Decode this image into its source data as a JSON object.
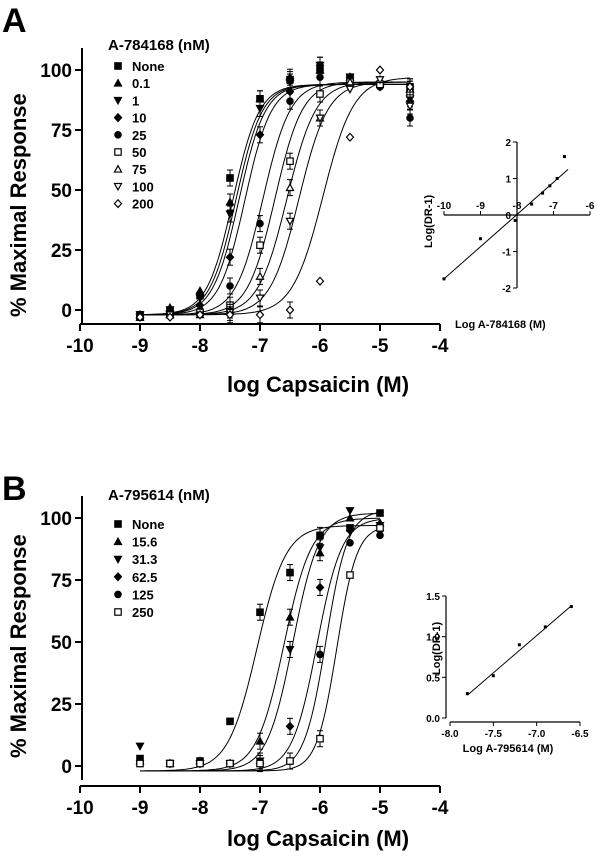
{
  "panels": [
    {
      "letter": "A",
      "legend_title": "A-784168 (nM)",
      "ylabel": "% Maximal Response",
      "xlabel": "log Capsaicin (M)",
      "xticks": [
        "-10",
        "-9",
        "-8",
        "-7",
        "-6",
        "-5",
        "-4"
      ],
      "yticks": [
        "0",
        "25",
        "50",
        "75",
        "100"
      ],
      "inset": {
        "ylabel": "Log(DR-1)",
        "xlabel": "Log A-784168 (M)",
        "xticks": [
          "-10",
          "-9",
          "-8",
          "-7",
          "-6"
        ],
        "yticks": [
          "2",
          "1",
          "0",
          "-1",
          "-2"
        ]
      }
    },
    {
      "letter": "B",
      "legend_title": "A-795614 (nM)",
      "ylabel": "% Maximal Response",
      "xlabel": "log Capsaicin (M)",
      "xticks": [
        "-10",
        "-9",
        "-8",
        "-7",
        "-6",
        "-5",
        "-4"
      ],
      "yticks": [
        "0",
        "25",
        "50",
        "75",
        "100"
      ],
      "inset": {
        "ylabel": "Log(DR-1)",
        "xlabel": "Log A-795614 (M)",
        "xticks": [
          "-8.0",
          "-7.5",
          "-7.0",
          "-6.5"
        ],
        "yticks": [
          "0.0",
          "0.5",
          "1.0",
          "1.5"
        ]
      }
    }
  ],
  "chart_data": [
    {
      "type": "scatter",
      "panel": "A",
      "title": "",
      "xlabel": "log Capsaicin (M)",
      "ylabel": "% Maximal Response",
      "xlim": [
        -10,
        -4
      ],
      "ylim": [
        -8,
        108
      ],
      "fit": "sigmoidal dose-response curves",
      "legend_title": "A-784168 (nM)",
      "series": [
        {
          "name": "None",
          "marker": "square-filled",
          "ec50": -7.45,
          "top": 94,
          "hill": 2.0,
          "x": [
            -9,
            -8.5,
            -8,
            -7.5,
            -7,
            -6.5,
            -6,
            -5.5,
            -5,
            -4.5
          ],
          "y": [
            -2,
            0,
            6,
            55,
            88,
            96,
            100,
            97,
            94,
            93
          ]
        },
        {
          "name": "0.1",
          "marker": "triangle-up-filled",
          "ec50": -7.4,
          "top": 94,
          "hill": 2.0,
          "x": [
            -9,
            -8.5,
            -8,
            -7.5,
            -7,
            -6.5,
            -6,
            -5.5,
            -5,
            -4.5
          ],
          "y": [
            -2,
            1,
            8,
            45,
            88,
            97,
            100,
            97,
            95,
            92
          ]
        },
        {
          "name": "1",
          "marker": "triangle-down-filled",
          "ec50": -7.35,
          "top": 94,
          "hill": 2.0,
          "x": [
            -9,
            -8.5,
            -8,
            -7.5,
            -7,
            -6.5,
            -6,
            -5.5,
            -5,
            -4.5
          ],
          "y": [
            -2,
            0,
            5,
            40,
            84,
            95,
            102,
            97,
            94,
            88
          ]
        },
        {
          "name": "10",
          "marker": "diamond-filled",
          "ec50": -7.25,
          "top": 94,
          "hill": 2.0,
          "x": [
            -9,
            -8.5,
            -8,
            -7.5,
            -7,
            -6.5,
            -6,
            -5.5,
            -5,
            -4.5
          ],
          "y": [
            -2,
            -1,
            2,
            22,
            73,
            91,
            102,
            97,
            93,
            87
          ]
        },
        {
          "name": "25",
          "marker": "circle-filled",
          "ec50": -6.95,
          "top": 95,
          "hill": 1.9,
          "x": [
            -9,
            -8.5,
            -8,
            -7.5,
            -7,
            -6.5,
            -6,
            -5.5,
            -5,
            -4.5
          ],
          "y": [
            -3,
            -2,
            0,
            10,
            36,
            87,
            97,
            96,
            93,
            80
          ]
        },
        {
          "name": "50",
          "marker": "square-open",
          "ec50": -6.75,
          "top": 95,
          "hill": 1.9,
          "x": [
            -9,
            -8.5,
            -8,
            -7.5,
            -7,
            -6.5,
            -6,
            -5.5,
            -5,
            -4.5
          ],
          "y": [
            -3,
            -2,
            -1,
            2,
            27,
            62,
            90,
            95,
            94,
            90
          ]
        },
        {
          "name": "75",
          "marker": "triangle-up-open",
          "ec50": -6.55,
          "top": 95,
          "hill": 1.8,
          "x": [
            -9,
            -8.5,
            -8,
            -7.5,
            -7,
            -6.5,
            -6,
            -5.5,
            -5,
            -4.5
          ],
          "y": [
            -3,
            -2,
            -2,
            0,
            14,
            51,
            80,
            95,
            96,
            92
          ]
        },
        {
          "name": "100",
          "marker": "triangle-down-open",
          "ec50": -6.35,
          "top": 95,
          "hill": 1.8,
          "x": [
            -9,
            -8.5,
            -8,
            -7.5,
            -7,
            -6.5,
            -6,
            -5.5,
            -5,
            -4.5
          ],
          "y": [
            -3,
            -2,
            -2,
            -1,
            5,
            37,
            80,
            92,
            96,
            85
          ]
        },
        {
          "name": "200",
          "marker": "diamond-open",
          "ec50": -5.95,
          "top": 97,
          "hill": 1.7,
          "x": [
            -9,
            -8.5,
            -8,
            -7.5,
            -7,
            -6.5,
            -6,
            -5.5,
            -5,
            -4.5
          ],
          "y": [
            -3,
            -3,
            -2,
            -2,
            -2,
            0,
            12,
            72,
            100,
            93
          ]
        }
      ],
      "inset": {
        "type": "scatter",
        "xlabel": "Log A-784168 (M)",
        "ylabel": "Log(DR-1)",
        "xlim": [
          -10,
          -6
        ],
        "ylim": [
          -2,
          2
        ],
        "points": {
          "x": [
            -10,
            -9,
            -8.05,
            -7.6,
            -7.3,
            -7.1,
            -6.9,
            -6.7
          ],
          "y": [
            -1.75,
            -0.65,
            -0.15,
            0.3,
            0.6,
            0.8,
            1.0,
            1.6
          ]
        },
        "fit_line": {
          "x": [
            -10,
            -6.6
          ],
          "y": [
            -1.75,
            1.25
          ]
        }
      }
    },
    {
      "type": "scatter",
      "panel": "B",
      "title": "",
      "xlabel": "log Capsaicin (M)",
      "ylabel": "% Maximal Response",
      "xlim": [
        -10,
        -4
      ],
      "ylim": [
        -8,
        108
      ],
      "fit": "sigmoidal dose-response curves",
      "legend_title": "A-795614 (nM)",
      "series": [
        {
          "name": "None",
          "marker": "square-filled",
          "ec50": -7.05,
          "top": 97,
          "hill": 1.8,
          "x": [
            -9,
            -8.5,
            -8,
            -7.5,
            -7,
            -6.5,
            -6,
            -5.5,
            -5
          ],
          "y": [
            3,
            1,
            2,
            18,
            62,
            78,
            93,
            96,
            102
          ]
        },
        {
          "name": "15.6",
          "marker": "triangle-up-filled",
          "ec50": -6.6,
          "top": 100,
          "hill": 1.9,
          "x": [
            -9,
            -8.5,
            -8,
            -7.5,
            -7,
            -6.5,
            -6,
            -5.5,
            -5
          ],
          "y": [
            2,
            1,
            2,
            1,
            10,
            60,
            86,
            100,
            98
          ]
        },
        {
          "name": "31.3",
          "marker": "triangle-down-filled",
          "ec50": -6.45,
          "top": 102,
          "hill": 2.0,
          "x": [
            -9,
            -8.5,
            -8,
            -7.5,
            -7,
            -6.5,
            -6,
            -5.5,
            -5
          ],
          "y": [
            8,
            1,
            1,
            1,
            2,
            47,
            88,
            103,
            97
          ]
        },
        {
          "name": "62.5",
          "marker": "diamond-filled",
          "ec50": -6.05,
          "top": 100,
          "hill": 2.1,
          "x": [
            -9,
            -8.5,
            -8,
            -7.5,
            -7,
            -6.5,
            -6,
            -5.5,
            -5
          ],
          "y": [
            2,
            1,
            1,
            1,
            1,
            16,
            72,
            95,
            95
          ]
        },
        {
          "name": "125",
          "marker": "circle-filled",
          "ec50": -5.9,
          "top": 103,
          "hill": 2.4,
          "x": [
            -9,
            -8.5,
            -8,
            -7.5,
            -7,
            -6.5,
            -6,
            -5.5,
            -5
          ],
          "y": [
            1,
            1,
            1,
            1,
            1,
            2,
            45,
            90,
            93
          ]
        },
        {
          "name": "250",
          "marker": "square-open",
          "ec50": -5.72,
          "top": 97,
          "hill": 2.6,
          "x": [
            -9,
            -8.5,
            -8,
            -7.5,
            -7,
            -6.5,
            -6,
            -5.5,
            -5
          ],
          "y": [
            1,
            1,
            1,
            1,
            1,
            2,
            11,
            77,
            96
          ]
        }
      ],
      "inset": {
        "type": "scatter",
        "xlabel": "Log A-795614 (M)",
        "ylabel": "Log(DR-1)",
        "xlim": [
          -8.0,
          -6.5
        ],
        "ylim": [
          0.0,
          1.5
        ],
        "points": {
          "x": [
            -7.8,
            -7.5,
            -7.2,
            -6.9,
            -6.6
          ],
          "y": [
            0.3,
            0.52,
            0.9,
            1.12,
            1.37
          ]
        },
        "fit_line": {
          "x": [
            -7.8,
            -6.6
          ],
          "y": [
            0.28,
            1.38
          ]
        }
      }
    }
  ]
}
